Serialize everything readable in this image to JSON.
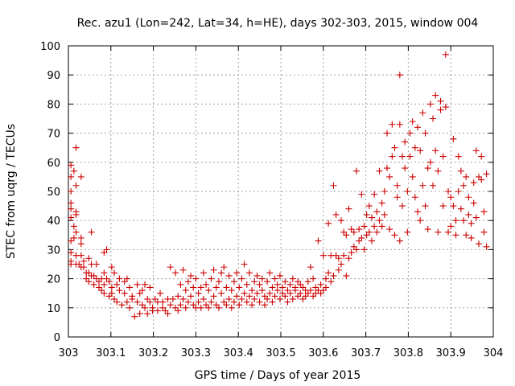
{
  "chart_data": {
    "type": "scatter",
    "title": "Rec. azu1 (Lon=242, Lat=34, h=HE), days 302-303, 2015, window 004",
    "xlabel": "GPS time / Days of year 2015",
    "ylabel": "STEC from uqrg / TECUs",
    "xlim": [
      303,
      304
    ],
    "ylim": [
      0,
      100
    ],
    "x_ticks": [
      303,
      303.1,
      303.2,
      303.3,
      303.4,
      303.5,
      303.6,
      303.7,
      303.8,
      303.9,
      304
    ],
    "x_tick_labels": [
      "303",
      "303.1",
      "303.2",
      "303.3",
      "303.4",
      "303.5",
      "303.6",
      "303.7",
      "303.8",
      "303.9",
      "304"
    ],
    "y_ticks": [
      0,
      10,
      20,
      30,
      40,
      50,
      60,
      70,
      80,
      90,
      100
    ],
    "y_tick_labels": [
      "0",
      "10",
      "20",
      "30",
      "40",
      "50",
      "60",
      "70",
      "80",
      "90",
      "100"
    ],
    "grid": true,
    "marker": "plus",
    "marker_color": "#cc0000",
    "points": [
      [
        303.006,
        59
      ],
      [
        303.006,
        55
      ],
      [
        303.006,
        50
      ],
      [
        303.006,
        46
      ],
      [
        303.006,
        44
      ],
      [
        303.006,
        41
      ],
      [
        303.006,
        33
      ],
      [
        303.006,
        29
      ],
      [
        303.006,
        26
      ],
      [
        303.006,
        25
      ],
      [
        303.013,
        57
      ],
      [
        303.013,
        38
      ],
      [
        303.013,
        34
      ],
      [
        303.018,
        65
      ],
      [
        303.018,
        52
      ],
      [
        303.018,
        43
      ],
      [
        303.018,
        42
      ],
      [
        303.018,
        36
      ],
      [
        303.018,
        28
      ],
      [
        303.018,
        25
      ],
      [
        303.025,
        25
      ],
      [
        303.03,
        55
      ],
      [
        303.03,
        34
      ],
      [
        303.03,
        32
      ],
      [
        303.03,
        28
      ],
      [
        303.03,
        24
      ],
      [
        303.036,
        26
      ],
      [
        303.036,
        24
      ],
      [
        303.042,
        22
      ],
      [
        303.042,
        20
      ],
      [
        303.048,
        27
      ],
      [
        303.048,
        22
      ],
      [
        303.048,
        19
      ],
      [
        303.054,
        36
      ],
      [
        303.054,
        25
      ],
      [
        303.054,
        21
      ],
      [
        303.06,
        21
      ],
      [
        303.06,
        18
      ],
      [
        303.066,
        25
      ],
      [
        303.066,
        20
      ],
      [
        303.072,
        19
      ],
      [
        303.072,
        17
      ],
      [
        303.078,
        16
      ],
      [
        303.078,
        20
      ],
      [
        303.084,
        29
      ],
      [
        303.084,
        22
      ],
      [
        303.084,
        18
      ],
      [
        303.084,
        15
      ],
      [
        303.09,
        30
      ],
      [
        303.09,
        20
      ],
      [
        303.096,
        14
      ],
      [
        303.096,
        19
      ],
      [
        303.102,
        24
      ],
      [
        303.102,
        17
      ],
      [
        303.102,
        15
      ],
      [
        303.108,
        22
      ],
      [
        303.108,
        13
      ],
      [
        303.114,
        18
      ],
      [
        303.114,
        12
      ],
      [
        303.12,
        20
      ],
      [
        303.12,
        16
      ],
      [
        303.126,
        11
      ],
      [
        303.132,
        19
      ],
      [
        303.132,
        15
      ],
      [
        303.138,
        12
      ],
      [
        303.138,
        20
      ],
      [
        303.144,
        17
      ],
      [
        303.144,
        10
      ],
      [
        303.15,
        14
      ],
      [
        303.15,
        13
      ],
      [
        303.156,
        7
      ],
      [
        303.162,
        18
      ],
      [
        303.162,
        12
      ],
      [
        303.168,
        15
      ],
      [
        303.168,
        8
      ],
      [
        303.174,
        16
      ],
      [
        303.174,
        11
      ],
      [
        303.18,
        18
      ],
      [
        303.18,
        10
      ],
      [
        303.186,
        13
      ],
      [
        303.186,
        8
      ],
      [
        303.192,
        17
      ],
      [
        303.192,
        12
      ],
      [
        303.198,
        10
      ],
      [
        303.198,
        9
      ],
      [
        303.204,
        13
      ],
      [
        303.21,
        12
      ],
      [
        303.21,
        9
      ],
      [
        303.216,
        15
      ],
      [
        303.222,
        12
      ],
      [
        303.222,
        10
      ],
      [
        303.228,
        9
      ],
      [
        303.234,
        13
      ],
      [
        303.234,
        8
      ],
      [
        303.24,
        11
      ],
      [
        303.24,
        24
      ],
      [
        303.246,
        13
      ],
      [
        303.252,
        10
      ],
      [
        303.252,
        22
      ],
      [
        303.258,
        14
      ],
      [
        303.258,
        9
      ],
      [
        303.264,
        18
      ],
      [
        303.264,
        11
      ],
      [
        303.27,
        23
      ],
      [
        303.27,
        13
      ],
      [
        303.276,
        16
      ],
      [
        303.276,
        10
      ],
      [
        303.282,
        19
      ],
      [
        303.282,
        12
      ],
      [
        303.288,
        14
      ],
      [
        303.288,
        21
      ],
      [
        303.294,
        11
      ],
      [
        303.294,
        17
      ],
      [
        303.3,
        10
      ],
      [
        303.3,
        20
      ],
      [
        303.306,
        15
      ],
      [
        303.306,
        12
      ],
      [
        303.312,
        17
      ],
      [
        303.312,
        10
      ],
      [
        303.318,
        22
      ],
      [
        303.318,
        13
      ],
      [
        303.324,
        18
      ],
      [
        303.324,
        11
      ],
      [
        303.33,
        16
      ],
      [
        303.33,
        10
      ],
      [
        303.336,
        20
      ],
      [
        303.336,
        12
      ],
      [
        303.342,
        23
      ],
      [
        303.342,
        14
      ],
      [
        303.348,
        17
      ],
      [
        303.348,
        11
      ],
      [
        303.354,
        19
      ],
      [
        303.354,
        10
      ],
      [
        303.36,
        22
      ],
      [
        303.36,
        15
      ],
      [
        303.366,
        12
      ],
      [
        303.366,
        24
      ],
      [
        303.372,
        17
      ],
      [
        303.372,
        11
      ],
      [
        303.378,
        21
      ],
      [
        303.378,
        13
      ],
      [
        303.384,
        16
      ],
      [
        303.384,
        10
      ],
      [
        303.39,
        19
      ],
      [
        303.39,
        12
      ],
      [
        303.396,
        14
      ],
      [
        303.396,
        22
      ],
      [
        303.402,
        17
      ],
      [
        303.402,
        11
      ],
      [
        303.408,
        20
      ],
      [
        303.408,
        13
      ],
      [
        303.414,
        25
      ],
      [
        303.414,
        15
      ],
      [
        303.42,
        12
      ],
      [
        303.42,
        18
      ],
      [
        303.426,
        22
      ],
      [
        303.426,
        14
      ],
      [
        303.432,
        16
      ],
      [
        303.432,
        11
      ],
      [
        303.438,
        19
      ],
      [
        303.438,
        13
      ],
      [
        303.444,
        21
      ],
      [
        303.444,
        15
      ],
      [
        303.45,
        12
      ],
      [
        303.45,
        18
      ],
      [
        303.456,
        16
      ],
      [
        303.456,
        20
      ],
      [
        303.462,
        14
      ],
      [
        303.462,
        11
      ],
      [
        303.468,
        19
      ],
      [
        303.468,
        13
      ],
      [
        303.474,
        22
      ],
      [
        303.474,
        15
      ],
      [
        303.48,
        17
      ],
      [
        303.48,
        12
      ],
      [
        303.486,
        20
      ],
      [
        303.486,
        14
      ],
      [
        303.492,
        16
      ],
      [
        303.492,
        18
      ],
      [
        303.498,
        13
      ],
      [
        303.498,
        21
      ],
      [
        303.504,
        15
      ],
      [
        303.504,
        17
      ],
      [
        303.51,
        19
      ],
      [
        303.51,
        14
      ],
      [
        303.516,
        16
      ],
      [
        303.516,
        12
      ],
      [
        303.522,
        18
      ],
      [
        303.522,
        15
      ],
      [
        303.528,
        20
      ],
      [
        303.528,
        13
      ],
      [
        303.534,
        17
      ],
      [
        303.534,
        16
      ],
      [
        303.54,
        14
      ],
      [
        303.54,
        19
      ],
      [
        303.546,
        15
      ],
      [
        303.546,
        18
      ],
      [
        303.552,
        13
      ],
      [
        303.552,
        17
      ],
      [
        303.558,
        16
      ],
      [
        303.558,
        14
      ],
      [
        303.564,
        19
      ],
      [
        303.564,
        15
      ],
      [
        303.57,
        24
      ],
      [
        303.57,
        16
      ],
      [
        303.576,
        14
      ],
      [
        303.576,
        20
      ],
      [
        303.582,
        17
      ],
      [
        303.582,
        15
      ],
      [
        303.588,
        33
      ],
      [
        303.588,
        16
      ],
      [
        303.594,
        15
      ],
      [
        303.594,
        18
      ],
      [
        303.6,
        16
      ],
      [
        303.6,
        28
      ],
      [
        303.606,
        17
      ],
      [
        303.606,
        20
      ],
      [
        303.612,
        39
      ],
      [
        303.612,
        22
      ],
      [
        303.618,
        19
      ],
      [
        303.618,
        28
      ],
      [
        303.624,
        52
      ],
      [
        303.624,
        21
      ],
      [
        303.63,
        28
      ],
      [
        303.63,
        42
      ],
      [
        303.636,
        23
      ],
      [
        303.636,
        27
      ],
      [
        303.642,
        40
      ],
      [
        303.642,
        25
      ],
      [
        303.648,
        36
      ],
      [
        303.648,
        28
      ],
      [
        303.654,
        21
      ],
      [
        303.654,
        35
      ],
      [
        303.66,
        27
      ],
      [
        303.66,
        44
      ],
      [
        303.666,
        29
      ],
      [
        303.666,
        37
      ],
      [
        303.672,
        36
      ],
      [
        303.672,
        31
      ],
      [
        303.678,
        57
      ],
      [
        303.678,
        30
      ],
      [
        303.684,
        37
      ],
      [
        303.684,
        33
      ],
      [
        303.69,
        49
      ],
      [
        303.69,
        34
      ],
      [
        303.696,
        30
      ],
      [
        303.696,
        38
      ],
      [
        303.702,
        42
      ],
      [
        303.702,
        35
      ],
      [
        303.708,
        45
      ],
      [
        303.708,
        36
      ],
      [
        303.714,
        33
      ],
      [
        303.714,
        41
      ],
      [
        303.72,
        49
      ],
      [
        303.72,
        38
      ],
      [
        303.726,
        36
      ],
      [
        303.726,
        43
      ],
      [
        303.732,
        57
      ],
      [
        303.732,
        40
      ],
      [
        303.738,
        46
      ],
      [
        303.738,
        38
      ],
      [
        303.744,
        50
      ],
      [
        303.744,
        42
      ],
      [
        303.75,
        58
      ],
      [
        303.75,
        70
      ],
      [
        303.756,
        55
      ],
      [
        303.756,
        37
      ],
      [
        303.762,
        62
      ],
      [
        303.762,
        73
      ],
      [
        303.768,
        65
      ],
      [
        303.768,
        35
      ],
      [
        303.774,
        48
      ],
      [
        303.774,
        52
      ],
      [
        303.78,
        90
      ],
      [
        303.78,
        73
      ],
      [
        303.78,
        33
      ],
      [
        303.786,
        62
      ],
      [
        303.786,
        45
      ],
      [
        303.792,
        67
      ],
      [
        303.792,
        58
      ],
      [
        303.798,
        50
      ],
      [
        303.798,
        36
      ],
      [
        303.804,
        62
      ],
      [
        303.804,
        70
      ],
      [
        303.81,
        74
      ],
      [
        303.81,
        55
      ],
      [
        303.816,
        65
      ],
      [
        303.816,
        48
      ],
      [
        303.822,
        72
      ],
      [
        303.822,
        43
      ],
      [
        303.828,
        64
      ],
      [
        303.828,
        40
      ],
      [
        303.834,
        77
      ],
      [
        303.834,
        52
      ],
      [
        303.84,
        70
      ],
      [
        303.84,
        45
      ],
      [
        303.846,
        58
      ],
      [
        303.846,
        37
      ],
      [
        303.852,
        80
      ],
      [
        303.852,
        60
      ],
      [
        303.858,
        75
      ],
      [
        303.858,
        52
      ],
      [
        303.864,
        83
      ],
      [
        303.864,
        64
      ],
      [
        303.87,
        57
      ],
      [
        303.87,
        36
      ],
      [
        303.876,
        78
      ],
      [
        303.876,
        81
      ],
      [
        303.882,
        62
      ],
      [
        303.882,
        45
      ],
      [
        303.888,
        97
      ],
      [
        303.888,
        79
      ],
      [
        303.894,
        50
      ],
      [
        303.894,
        36
      ],
      [
        303.9,
        48
      ],
      [
        303.9,
        38
      ],
      [
        303.906,
        68
      ],
      [
        303.906,
        45
      ],
      [
        303.912,
        40
      ],
      [
        303.912,
        35
      ],
      [
        303.918,
        62
      ],
      [
        303.918,
        50
      ],
      [
        303.924,
        57
      ],
      [
        303.924,
        44
      ],
      [
        303.93,
        52
      ],
      [
        303.93,
        40
      ],
      [
        303.936,
        55
      ],
      [
        303.936,
        35
      ],
      [
        303.942,
        48
      ],
      [
        303.942,
        42
      ],
      [
        303.948,
        39
      ],
      [
        303.948,
        34
      ],
      [
        303.954,
        53
      ],
      [
        303.954,
        46
      ],
      [
        303.96,
        64
      ],
      [
        303.96,
        41
      ],
      [
        303.966,
        55
      ],
      [
        303.966,
        32
      ],
      [
        303.972,
        62
      ],
      [
        303.972,
        54
      ],
      [
        303.978,
        43
      ],
      [
        303.978,
        36
      ],
      [
        303.984,
        56
      ],
      [
        303.984,
        31
      ]
    ]
  }
}
